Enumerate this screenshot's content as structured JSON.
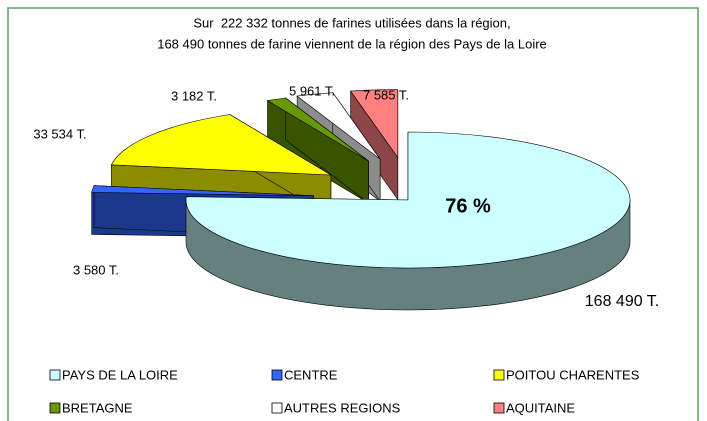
{
  "chart_data": {
    "type": "pie3d",
    "title": [
      "Sur  222 332 tonnes de farines utilisées dans la région,",
      "168 490 tonnes de farine viennent de la région des Pays de la Loire"
    ],
    "categories": [
      "PAYS DE LA LOIRE",
      "CENTRE",
      "POITOU CHARENTES",
      "BRETAGNE",
      "AUTRES REGIONS",
      "AQUITAINE"
    ],
    "values": [
      168490,
      3580,
      33534,
      3182,
      5961,
      7585
    ],
    "value_labels": [
      "168 490 T.",
      "3 580 T.",
      "33 534 T.",
      "3 182 T.",
      "5 961 T.",
      "7 585 T."
    ],
    "colors": [
      "#ccffff",
      "#3366ff",
      "#ffff00",
      "#669900",
      "#ffffff",
      "#ff8080"
    ],
    "annotation": "76 %",
    "legend": "bottom"
  }
}
